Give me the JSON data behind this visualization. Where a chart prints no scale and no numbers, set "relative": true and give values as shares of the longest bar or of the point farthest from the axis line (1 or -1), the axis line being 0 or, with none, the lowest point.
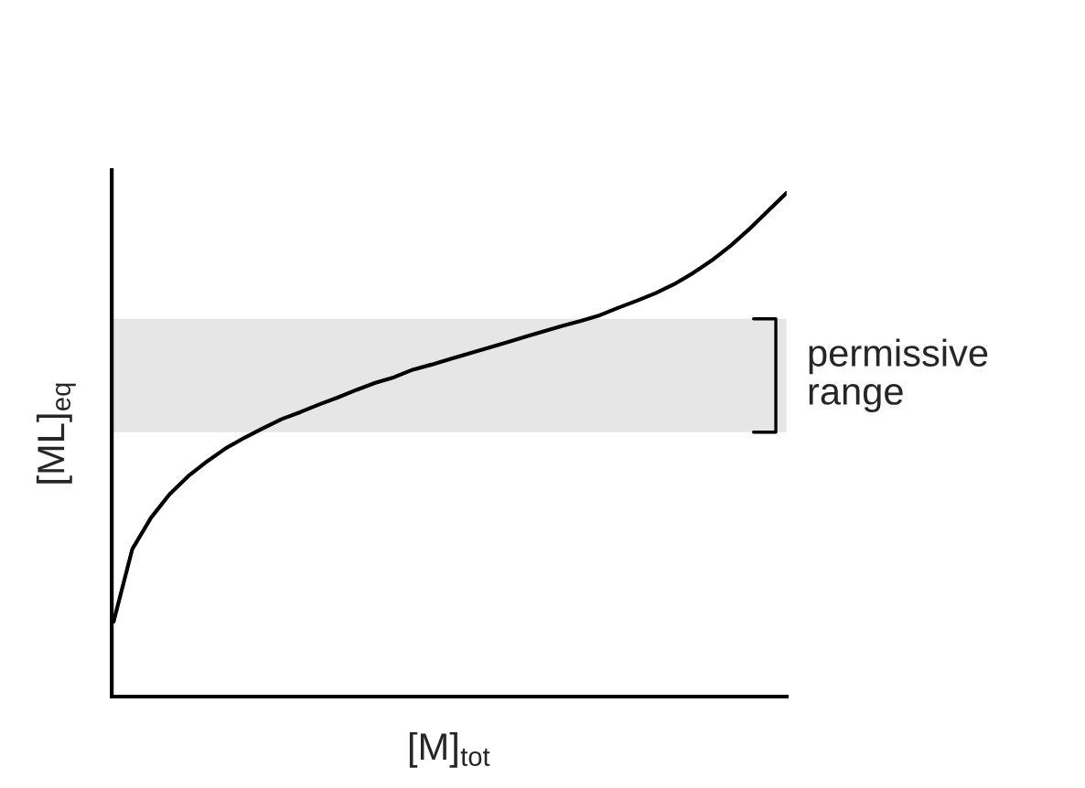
{
  "chart_data": {
    "type": "line",
    "relative": true,
    "xlabel": "[M]$_{tot}$",
    "ylabel": "[ML]$_{eq}$",
    "categories": [
      null,
      null,
      null,
      null,
      null,
      null,
      null,
      null,
      null,
      null,
      null,
      null,
      null,
      null,
      null,
      null,
      null,
      null,
      null,
      null,
      null,
      null,
      null,
      null,
      null,
      null,
      null,
      null,
      null,
      null,
      null,
      null,
      null,
      null,
      null,
      null,
      null
    ],
    "series": [
      {
        "color": "#000000",
        "values": [
          0.149,
          0.293,
          0.355,
          0.402,
          0.438,
          0.467,
          0.493,
          0.514,
          0.533,
          0.551,
          0.565,
          0.58,
          0.594,
          0.609,
          0.623,
          0.634,
          0.649,
          0.659,
          0.67,
          0.681,
          0.692,
          0.703,
          0.714,
          0.725,
          0.736,
          0.746,
          0.757,
          0.772,
          0.786,
          0.801,
          0.819,
          0.841,
          0.866,
          0.895,
          0.928,
          0.964,
          1.0
        ]
      }
    ],
    "bands": [
      {
        "axis": "y",
        "from": 0.525,
        "to": 0.75,
        "label": "permissive\nrange",
        "color": "#e6e6e6"
      }
    ],
    "legend": false,
    "marker": "none",
    "line_style": "solid"
  }
}
